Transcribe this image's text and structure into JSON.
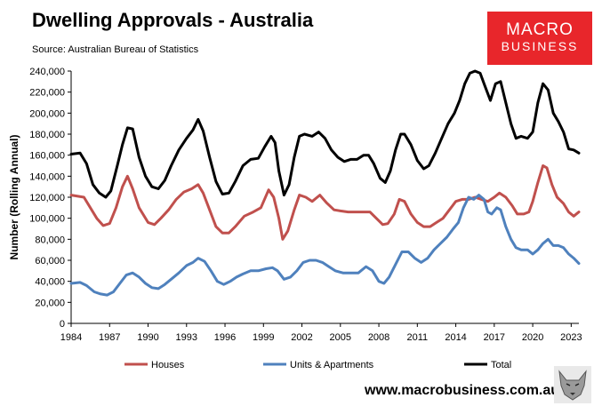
{
  "header": {
    "title": "Dwelling Approvals - Australia",
    "source": "Source: Australian Bureau of Statistics"
  },
  "logo": {
    "line1": "MACRO",
    "line2": "BUSINESS"
  },
  "footer": {
    "url": "www.macrobusiness.com.au"
  },
  "colors": {
    "houses": "#c0504d",
    "units": "#4f81bd",
    "total": "#000000",
    "logo_bg": "#e8262b"
  },
  "chart_data": {
    "type": "line",
    "title": "Dwelling Approvals - Australia",
    "xlabel": "",
    "ylabel": "Number (Rolling Annual)",
    "ylim": [
      0,
      240000
    ],
    "xlim": [
      1984,
      2023.6
    ],
    "grid": false,
    "legend_position": "bottom",
    "x_ticks": [
      "1984",
      "1987",
      "1990",
      "1993",
      "1996",
      "1999",
      "2002",
      "2005",
      "2008",
      "2011",
      "2014",
      "2017",
      "2020",
      "2023"
    ],
    "y_ticks": [
      "0",
      "20,000",
      "40,000",
      "60,000",
      "80,000",
      "100,000",
      "120,000",
      "140,000",
      "160,000",
      "180,000",
      "200,000",
      "220,000",
      "240,000"
    ],
    "series": [
      {
        "name": "Houses",
        "color": "#c0504d",
        "points": [
          [
            1984.0,
            122000
          ],
          [
            1985.0,
            120000
          ],
          [
            1986.0,
            100000
          ],
          [
            1986.5,
            93000
          ],
          [
            1987.0,
            95000
          ],
          [
            1987.5,
            110000
          ],
          [
            1988.0,
            130000
          ],
          [
            1988.4,
            140000
          ],
          [
            1988.8,
            128000
          ],
          [
            1989.3,
            110000
          ],
          [
            1990.0,
            96000
          ],
          [
            1990.5,
            94000
          ],
          [
            1991.0,
            100000
          ],
          [
            1991.6,
            108000
          ],
          [
            1992.2,
            118000
          ],
          [
            1992.8,
            125000
          ],
          [
            1993.4,
            128000
          ],
          [
            1993.9,
            132000
          ],
          [
            1994.3,
            124000
          ],
          [
            1994.8,
            108000
          ],
          [
            1995.3,
            92000
          ],
          [
            1995.8,
            86000
          ],
          [
            1996.3,
            86000
          ],
          [
            1996.8,
            92000
          ],
          [
            1997.5,
            102000
          ],
          [
            1998.2,
            106000
          ],
          [
            1998.8,
            110000
          ],
          [
            1999.4,
            127000
          ],
          [
            1999.8,
            120000
          ],
          [
            2000.2,
            100000
          ],
          [
            2000.5,
            80000
          ],
          [
            2000.9,
            88000
          ],
          [
            2001.4,
            108000
          ],
          [
            2001.8,
            122000
          ],
          [
            2002.3,
            120000
          ],
          [
            2002.8,
            116000
          ],
          [
            2003.4,
            122000
          ],
          [
            2003.9,
            115000
          ],
          [
            2004.5,
            108000
          ],
          [
            2005.0,
            107000
          ],
          [
            2005.6,
            106000
          ],
          [
            2006.2,
            106000
          ],
          [
            2006.8,
            106000
          ],
          [
            2007.3,
            106000
          ],
          [
            2007.8,
            100000
          ],
          [
            2008.3,
            94000
          ],
          [
            2008.7,
            95000
          ],
          [
            2009.2,
            104000
          ],
          [
            2009.6,
            118000
          ],
          [
            2010.0,
            116000
          ],
          [
            2010.5,
            104000
          ],
          [
            2011.0,
            96000
          ],
          [
            2011.5,
            92000
          ],
          [
            2012.0,
            92000
          ],
          [
            2012.5,
            96000
          ],
          [
            2013.0,
            100000
          ],
          [
            2013.5,
            108000
          ],
          [
            2014.0,
            116000
          ],
          [
            2014.5,
            118000
          ],
          [
            2015.0,
            118000
          ],
          [
            2015.5,
            120000
          ],
          [
            2016.0,
            118000
          ],
          [
            2016.5,
            116000
          ],
          [
            2017.0,
            120000
          ],
          [
            2017.4,
            124000
          ],
          [
            2017.9,
            120000
          ],
          [
            2018.4,
            112000
          ],
          [
            2018.8,
            104000
          ],
          [
            2019.3,
            104000
          ],
          [
            2019.7,
            106000
          ],
          [
            2020.0,
            116000
          ],
          [
            2020.4,
            134000
          ],
          [
            2020.8,
            150000
          ],
          [
            2021.1,
            148000
          ],
          [
            2021.5,
            132000
          ],
          [
            2021.9,
            120000
          ],
          [
            2022.4,
            114000
          ],
          [
            2022.8,
            106000
          ],
          [
            2023.2,
            102000
          ],
          [
            2023.6,
            106000
          ]
        ]
      },
      {
        "name": "Units & Apartments",
        "color": "#4f81bd",
        "points": [
          [
            1984.0,
            38000
          ],
          [
            1984.7,
            39000
          ],
          [
            1985.2,
            36000
          ],
          [
            1985.8,
            30000
          ],
          [
            1986.3,
            28000
          ],
          [
            1986.8,
            27000
          ],
          [
            1987.3,
            30000
          ],
          [
            1987.8,
            38000
          ],
          [
            1988.3,
            46000
          ],
          [
            1988.8,
            48000
          ],
          [
            1989.3,
            44000
          ],
          [
            1989.8,
            38000
          ],
          [
            1990.3,
            34000
          ],
          [
            1990.8,
            33000
          ],
          [
            1991.3,
            37000
          ],
          [
            1991.8,
            42000
          ],
          [
            1992.4,
            48000
          ],
          [
            1993.0,
            55000
          ],
          [
            1993.5,
            58000
          ],
          [
            1993.9,
            62000
          ],
          [
            1994.4,
            59000
          ],
          [
            1994.9,
            50000
          ],
          [
            1995.4,
            40000
          ],
          [
            1995.9,
            37000
          ],
          [
            1996.4,
            40000
          ],
          [
            1996.9,
            44000
          ],
          [
            1997.4,
            47000
          ],
          [
            1998.0,
            50000
          ],
          [
            1998.6,
            50000
          ],
          [
            1999.2,
            52000
          ],
          [
            1999.7,
            53000
          ],
          [
            2000.1,
            50000
          ],
          [
            2000.6,
            42000
          ],
          [
            2001.1,
            44000
          ],
          [
            2001.6,
            50000
          ],
          [
            2002.1,
            58000
          ],
          [
            2002.6,
            60000
          ],
          [
            2003.1,
            60000
          ],
          [
            2003.6,
            58000
          ],
          [
            2004.1,
            54000
          ],
          [
            2004.6,
            50000
          ],
          [
            2005.2,
            48000
          ],
          [
            2005.8,
            48000
          ],
          [
            2006.4,
            48000
          ],
          [
            2007.0,
            54000
          ],
          [
            2007.5,
            50000
          ],
          [
            2008.0,
            40000
          ],
          [
            2008.4,
            38000
          ],
          [
            2008.8,
            44000
          ],
          [
            2009.3,
            56000
          ],
          [
            2009.8,
            68000
          ],
          [
            2010.3,
            68000
          ],
          [
            2010.8,
            62000
          ],
          [
            2011.3,
            58000
          ],
          [
            2011.8,
            62000
          ],
          [
            2012.3,
            70000
          ],
          [
            2012.8,
            76000
          ],
          [
            2013.3,
            82000
          ],
          [
            2013.8,
            90000
          ],
          [
            2014.2,
            96000
          ],
          [
            2014.6,
            110000
          ],
          [
            2015.0,
            120000
          ],
          [
            2015.4,
            118000
          ],
          [
            2015.8,
            122000
          ],
          [
            2016.2,
            118000
          ],
          [
            2016.5,
            106000
          ],
          [
            2016.8,
            104000
          ],
          [
            2017.2,
            110000
          ],
          [
            2017.5,
            108000
          ],
          [
            2017.9,
            92000
          ],
          [
            2018.3,
            80000
          ],
          [
            2018.7,
            72000
          ],
          [
            2019.1,
            70000
          ],
          [
            2019.6,
            70000
          ],
          [
            2020.0,
            66000
          ],
          [
            2020.4,
            70000
          ],
          [
            2020.8,
            76000
          ],
          [
            2021.2,
            80000
          ],
          [
            2021.6,
            74000
          ],
          [
            2022.0,
            74000
          ],
          [
            2022.4,
            72000
          ],
          [
            2022.8,
            66000
          ],
          [
            2023.2,
            62000
          ],
          [
            2023.6,
            57000
          ]
        ]
      },
      {
        "name": "Total",
        "color": "#000000",
        "points": [
          [
            1984.0,
            161000
          ],
          [
            1984.7,
            162000
          ],
          [
            1985.2,
            152000
          ],
          [
            1985.7,
            132000
          ],
          [
            1986.2,
            124000
          ],
          [
            1986.7,
            120000
          ],
          [
            1987.1,
            126000
          ],
          [
            1987.6,
            150000
          ],
          [
            1988.0,
            170000
          ],
          [
            1988.4,
            186000
          ],
          [
            1988.8,
            185000
          ],
          [
            1989.3,
            158000
          ],
          [
            1989.8,
            140000
          ],
          [
            1990.3,
            130000
          ],
          [
            1990.8,
            128000
          ],
          [
            1991.3,
            136000
          ],
          [
            1991.8,
            150000
          ],
          [
            1992.4,
            165000
          ],
          [
            1993.0,
            176000
          ],
          [
            1993.5,
            184000
          ],
          [
            1993.9,
            194000
          ],
          [
            1994.3,
            183000
          ],
          [
            1994.8,
            158000
          ],
          [
            1995.3,
            135000
          ],
          [
            1995.8,
            123000
          ],
          [
            1996.3,
            124000
          ],
          [
            1996.8,
            135000
          ],
          [
            1997.4,
            150000
          ],
          [
            1998.0,
            156000
          ],
          [
            1998.6,
            157000
          ],
          [
            1999.1,
            168000
          ],
          [
            1999.6,
            178000
          ],
          [
            1999.9,
            172000
          ],
          [
            2000.2,
            145000
          ],
          [
            2000.6,
            122000
          ],
          [
            2001.0,
            132000
          ],
          [
            2001.4,
            158000
          ],
          [
            2001.8,
            178000
          ],
          [
            2002.2,
            180000
          ],
          [
            2002.8,
            178000
          ],
          [
            2003.3,
            182000
          ],
          [
            2003.8,
            176000
          ],
          [
            2004.3,
            165000
          ],
          [
            2004.8,
            158000
          ],
          [
            2005.3,
            154000
          ],
          [
            2005.8,
            156000
          ],
          [
            2006.3,
            156000
          ],
          [
            2006.8,
            160000
          ],
          [
            2007.2,
            160000
          ],
          [
            2007.6,
            152000
          ],
          [
            2008.1,
            138000
          ],
          [
            2008.5,
            134000
          ],
          [
            2008.9,
            145000
          ],
          [
            2009.3,
            165000
          ],
          [
            2009.7,
            180000
          ],
          [
            2010.0,
            180000
          ],
          [
            2010.5,
            170000
          ],
          [
            2011.0,
            155000
          ],
          [
            2011.5,
            147000
          ],
          [
            2011.9,
            150000
          ],
          [
            2012.4,
            162000
          ],
          [
            2012.9,
            176000
          ],
          [
            2013.4,
            190000
          ],
          [
            2013.9,
            200000
          ],
          [
            2014.3,
            212000
          ],
          [
            2014.7,
            228000
          ],
          [
            2015.1,
            238000
          ],
          [
            2015.5,
            240000
          ],
          [
            2015.9,
            238000
          ],
          [
            2016.3,
            225000
          ],
          [
            2016.7,
            212000
          ],
          [
            2017.1,
            228000
          ],
          [
            2017.5,
            230000
          ],
          [
            2017.9,
            210000
          ],
          [
            2018.3,
            190000
          ],
          [
            2018.7,
            176000
          ],
          [
            2019.1,
            178000
          ],
          [
            2019.6,
            176000
          ],
          [
            2020.0,
            182000
          ],
          [
            2020.4,
            210000
          ],
          [
            2020.8,
            228000
          ],
          [
            2021.2,
            222000
          ],
          [
            2021.6,
            200000
          ],
          [
            2022.0,
            192000
          ],
          [
            2022.4,
            182000
          ],
          [
            2022.8,
            166000
          ],
          [
            2023.2,
            165000
          ],
          [
            2023.6,
            162000
          ]
        ]
      }
    ]
  }
}
